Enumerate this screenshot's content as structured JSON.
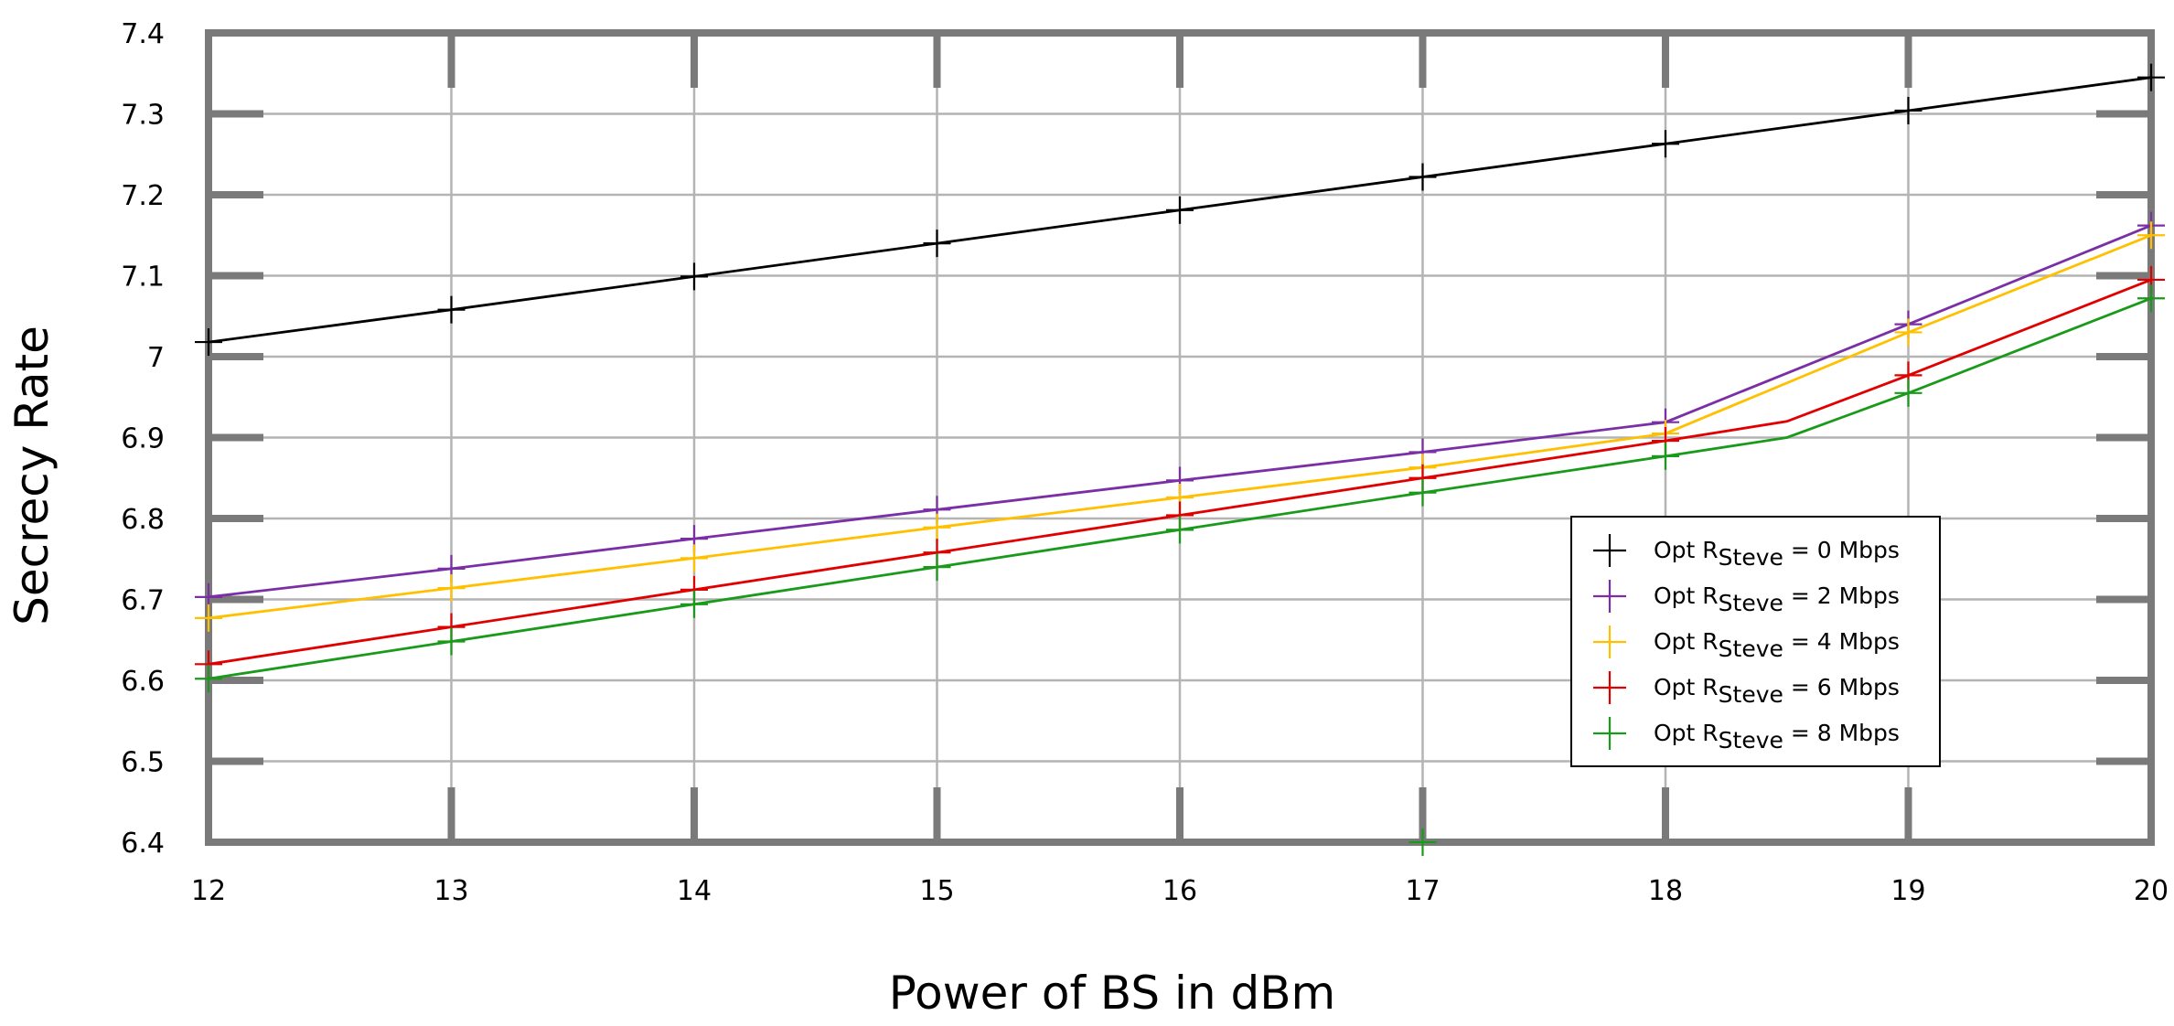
{
  "chart_data": {
    "type": "line",
    "xlabel": "Power of BS in dBm",
    "ylabel": "Secrecy Rate",
    "xlim": [
      12,
      20
    ],
    "ylim": [
      6.4,
      7.4
    ],
    "x_ticks": [
      "12",
      "13",
      "14",
      "15",
      "16",
      "17",
      "18",
      "19",
      "20"
    ],
    "y_ticks": [
      "6.4",
      "6.5",
      "6.6",
      "6.7",
      "6.8",
      "6.9",
      "7",
      "7.1",
      "7.2",
      "7.3",
      "7.4"
    ],
    "grid": true,
    "legend_position": "lower-right",
    "x": [
      12,
      13,
      14,
      15,
      16,
      17,
      18,
      19,
      20
    ],
    "series": [
      {
        "name_prefix": "Opt R",
        "name_sub": "Steve",
        "name_suffix": " = 0 Mbps",
        "color": "#000000",
        "points": [
          [
            12,
            7.018
          ],
          [
            13,
            7.058
          ],
          [
            14,
            7.099
          ],
          [
            15,
            7.14
          ],
          [
            16,
            7.181
          ],
          [
            17,
            7.222
          ],
          [
            18,
            7.263
          ],
          [
            19,
            7.304
          ],
          [
            20,
            7.345
          ]
        ],
        "markers": [
          12,
          13,
          14,
          15,
          16,
          17,
          18,
          19,
          20
        ]
      },
      {
        "name_prefix": "Opt R",
        "name_sub": "Steve",
        "name_suffix": " = 2 Mbps",
        "color": "#7b2fa6",
        "points": [
          [
            12,
            6.703
          ],
          [
            13,
            6.738
          ],
          [
            14,
            6.775
          ],
          [
            15,
            6.811
          ],
          [
            16,
            6.847
          ],
          [
            17,
            6.882
          ],
          [
            18,
            6.919
          ],
          [
            19,
            7.04
          ],
          [
            20,
            7.162
          ]
        ],
        "markers": [
          12,
          13,
          14,
          15,
          16,
          17,
          18,
          19,
          20
        ]
      },
      {
        "name_prefix": "Opt R",
        "name_sub": "Steve",
        "name_suffix": " = 4 Mbps",
        "color": "#ffc000",
        "points": [
          [
            12,
            6.677
          ],
          [
            13,
            6.714
          ],
          [
            14,
            6.751
          ],
          [
            15,
            6.789
          ],
          [
            16,
            6.826
          ],
          [
            17,
            6.863
          ],
          [
            18,
            6.905
          ],
          [
            19,
            7.03
          ],
          [
            20,
            7.15
          ]
        ],
        "markers": [
          12,
          13,
          14,
          15,
          16,
          17,
          18,
          19,
          20
        ]
      },
      {
        "name_prefix": "Opt R",
        "name_sub": "Steve",
        "name_suffix": " = 6 Mbps",
        "color": "#e00000",
        "points": [
          [
            12,
            6.62
          ],
          [
            13,
            6.666
          ],
          [
            14,
            6.712
          ],
          [
            15,
            6.758
          ],
          [
            16,
            6.804
          ],
          [
            17,
            6.85
          ],
          [
            18,
            6.896
          ],
          [
            18.5,
            6.92
          ],
          [
            19,
            6.977
          ],
          [
            20,
            7.095
          ]
        ],
        "markers": [
          12,
          13,
          14,
          15,
          16,
          17,
          18,
          19,
          20
        ]
      },
      {
        "name_prefix": "Opt R",
        "name_sub": "Steve",
        "name_suffix": " = 8 Mbps",
        "color": "#1a9a1a",
        "points": [
          [
            12,
            6.602
          ],
          [
            13,
            6.648
          ],
          [
            14,
            6.694
          ],
          [
            15,
            6.74
          ],
          [
            16,
            6.786
          ],
          [
            17,
            6.832
          ],
          [
            18,
            6.877
          ],
          [
            18.5,
            6.9
          ],
          [
            19,
            6.955
          ],
          [
            20,
            7.072
          ]
        ],
        "markers": [
          12,
          13,
          14,
          15,
          16,
          17,
          18,
          19,
          20
        ],
        "extra_markers": [
          [
            17,
            6.4
          ]
        ]
      }
    ]
  }
}
